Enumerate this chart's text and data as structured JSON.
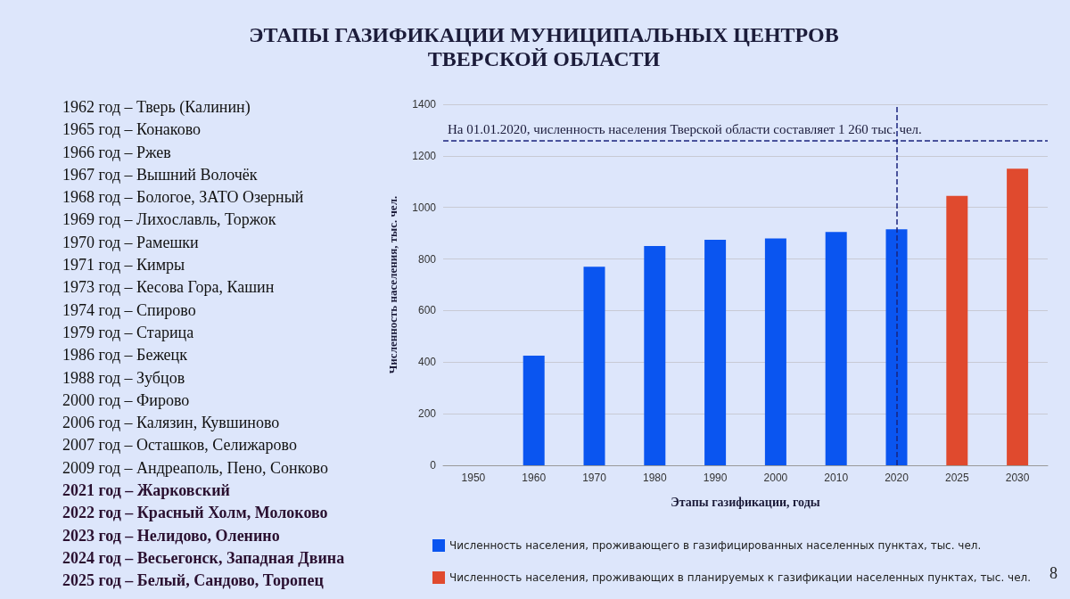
{
  "chart_data": {
    "type": "bar",
    "title": "ЭТАПЫ ГАЗИФИКАЦИИ МУНИЦИПАЛЬНЫХ ЦЕНТРОВ ТВЕРСКОЙ ОБЛАСТИ",
    "xlabel": "Этапы газификации, годы",
    "ylabel": "Численность населения, тыс. чел.",
    "categories": [
      "1950",
      "1960",
      "1970",
      "1980",
      "1990",
      "2000",
      "2010",
      "2020",
      "2025",
      "2030"
    ],
    "series": [
      {
        "name": "Численность населения, проживающего в газифицированных населенных пунктах, тыс. чел.",
        "color": "#0a55f0",
        "values": [
          null,
          425,
          770,
          850,
          875,
          880,
          905,
          915,
          null,
          null
        ]
      },
      {
        "name": "Численность населения, проживающих в планируемых к газификации населенных пунктах, тыс. чел.",
        "color": "#e04a2e",
        "values": [
          null,
          null,
          null,
          null,
          null,
          null,
          null,
          null,
          1045,
          1150
        ]
      }
    ],
    "stacked": true,
    "ylim": [
      0,
      1400
    ],
    "yticks": [
      0,
      200,
      400,
      600,
      800,
      1000,
      1200,
      1400
    ],
    "grid": "y",
    "legend": "bottom",
    "ref_lines": [
      {
        "axis": "y",
        "value": 1260,
        "label": "На 01.01.2020, численность населения Тверской области составляет 1 260 тыс. чел.",
        "line_style": "dashed",
        "color": "#1a237e"
      },
      {
        "axis": "x",
        "value": "2020",
        "label": null,
        "line_style": "dashed",
        "color": "#1a237e"
      }
    ],
    "annotations": [
      "1962 год – Тверь (Калинин)",
      "1965 год – Конаково",
      "1966 год – Ржев",
      "1967 год – Вышний Волочёк",
      "1968 год – Бологое, ЗАТО Озерный",
      "1969 год – Лихославль, Торжок",
      "1970 год – Рамешки",
      "1971 год – Кимры",
      "1973 год – Кесова Гора, Кашин",
      "1974 год – Спирово",
      "1979 год – Старица",
      "1986 год – Бежецк",
      "1988 год – Зубцов",
      "2000 год – Фирово",
      "2006 год – Калязин, Кувшиново",
      "2007 год – Осташков, Селижарово",
      "2009 год – Андреаполь, Пено, Сонково",
      "2021 год – Жарковский",
      "2022 год – Красный Холм, Молоково",
      "2023 год – Нелидово, Оленино",
      "2024 год – Весьегонск, Западная Двина",
      "2025 год – Белый, Сандово, Торопец",
      "8"
    ]
  }
}
